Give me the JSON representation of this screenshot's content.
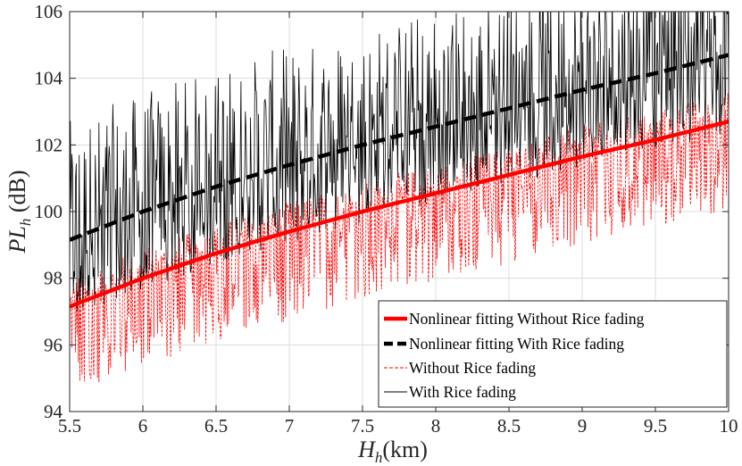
{
  "chart_data": {
    "type": "line",
    "title": "",
    "xlabel": {
      "var": "H",
      "sub": "h",
      "unit": "(km)"
    },
    "ylabel": {
      "var": "PL",
      "sub": "h",
      "unit": " (dB)"
    },
    "xlim": [
      5.5,
      10
    ],
    "ylim": [
      94,
      106
    ],
    "xticks": [
      5.5,
      6,
      6.5,
      7,
      7.5,
      8,
      8.5,
      9,
      9.5,
      10
    ],
    "xtick_labels": [
      "5.5",
      "6",
      "6.5",
      "7",
      "7.5",
      "8",
      "8.5",
      "9",
      "9.5",
      "10"
    ],
    "yticks": [
      94,
      96,
      98,
      100,
      102,
      104,
      106
    ],
    "ytick_labels": [
      "94",
      "96",
      "98",
      "100",
      "102",
      "104",
      "106"
    ],
    "grid": true,
    "legend_position": "bottom-right",
    "series": [
      {
        "name": "Nonlinear fitting Without Rice fading",
        "color": "#ff0000",
        "style": "solid-thick",
        "x": [
          5.5,
          6.0,
          6.5,
          7.0,
          7.5,
          8.0,
          8.5,
          9.0,
          9.5,
          10.0
        ],
        "y": [
          97.15,
          98.0,
          98.75,
          99.4,
          100.0,
          100.55,
          101.1,
          101.65,
          102.15,
          102.7
        ]
      },
      {
        "name": "Nonlinear fitting With Rice fading",
        "color": "#000000",
        "style": "dashed-thick",
        "x": [
          5.5,
          6.0,
          6.5,
          7.0,
          7.5,
          8.0,
          8.5,
          9.0,
          9.5,
          10.0
        ],
        "y": [
          99.15,
          100.0,
          100.75,
          101.4,
          102.0,
          102.55,
          103.1,
          103.65,
          104.15,
          104.7
        ]
      },
      {
        "name": "Without Rice fading",
        "color": "#ff0000",
        "style": "dashed-thin",
        "fluctuation_range_dB": [
          -2.8,
          0.9
        ]
      },
      {
        "name": "With Rice fading",
        "color": "#000000",
        "style": "solid-thin",
        "fluctuation_range_dB": [
          -2.6,
          3.6
        ]
      }
    ]
  }
}
